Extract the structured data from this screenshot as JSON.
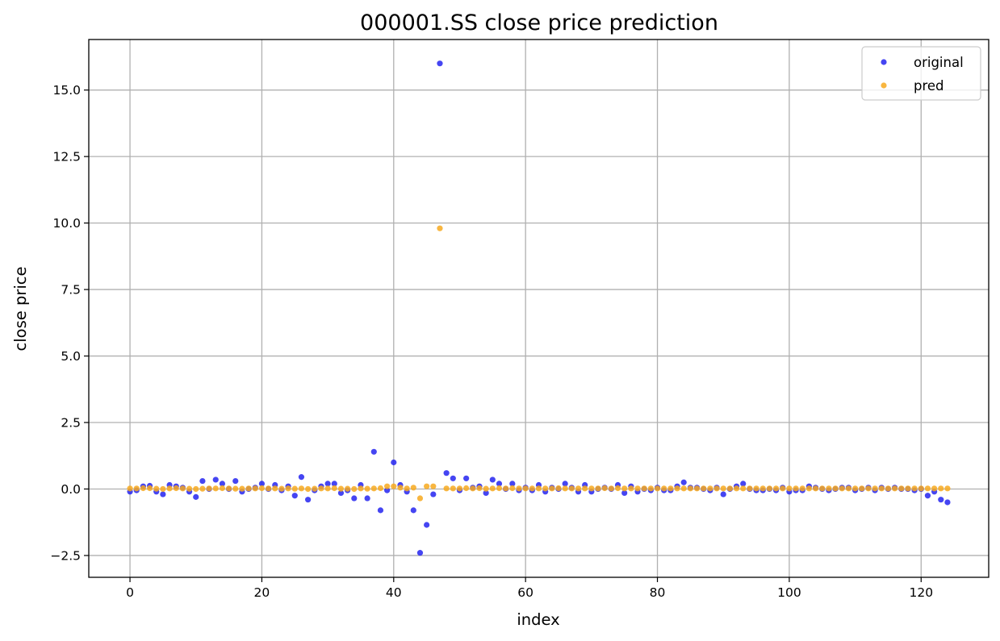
{
  "chart_data": {
    "type": "scatter",
    "title": "000001.SS close price prediction",
    "xlabel": "index",
    "ylabel": "close price",
    "xlim": [
      -6.25,
      130.25
    ],
    "ylim": [
      -3.32,
      16.9
    ],
    "xticks": [
      0,
      20,
      40,
      60,
      80,
      100,
      120
    ],
    "xtick_labels": [
      "0",
      "20",
      "40",
      "60",
      "80",
      "100",
      "120"
    ],
    "yticks": [
      -2.5,
      0.0,
      2.5,
      5.0,
      7.5,
      10.0,
      12.5,
      15.0
    ],
    "ytick_labels": [
      "−2.5",
      "0.0",
      "2.5",
      "5.0",
      "7.5",
      "10.0",
      "12.5",
      "15.0"
    ],
    "grid": true,
    "legend_position": "top-right",
    "series": [
      {
        "name": "original",
        "color": "#2424f0",
        "x": [
          0,
          1,
          2,
          3,
          4,
          5,
          6,
          7,
          8,
          9,
          10,
          11,
          12,
          13,
          14,
          15,
          16,
          17,
          18,
          19,
          20,
          21,
          22,
          23,
          24,
          25,
          26,
          27,
          28,
          29,
          30,
          31,
          32,
          33,
          34,
          35,
          36,
          37,
          38,
          39,
          40,
          41,
          42,
          43,
          44,
          45,
          46,
          47,
          48,
          49,
          50,
          51,
          52,
          53,
          54,
          55,
          56,
          57,
          58,
          59,
          60,
          61,
          62,
          63,
          64,
          65,
          66,
          67,
          68,
          69,
          70,
          71,
          72,
          73,
          74,
          75,
          76,
          77,
          78,
          79,
          80,
          81,
          82,
          83,
          84,
          85,
          86,
          87,
          88,
          89,
          90,
          91,
          92,
          93,
          94,
          95,
          96,
          97,
          98,
          99,
          100,
          101,
          102,
          103,
          104,
          105,
          106,
          107,
          108,
          109,
          110,
          111,
          112,
          113,
          114,
          115,
          116,
          117,
          118,
          119,
          120,
          121,
          122,
          123,
          124
        ],
        "y": [
          -0.1,
          -0.05,
          0.1,
          0.12,
          -0.1,
          -0.2,
          0.15,
          0.1,
          0.05,
          -0.1,
          -0.3,
          0.3,
          0.0,
          0.35,
          0.2,
          0.0,
          0.3,
          -0.1,
          0.0,
          0.05,
          0.2,
          0.0,
          0.15,
          -0.05,
          0.1,
          -0.25,
          0.45,
          -0.4,
          -0.05,
          0.1,
          0.2,
          0.2,
          -0.15,
          -0.05,
          -0.35,
          0.15,
          -0.35,
          1.4,
          -0.8,
          -0.05,
          1.0,
          0.15,
          -0.1,
          -0.8,
          -2.4,
          -1.35,
          -0.2,
          16.0,
          0.6,
          0.4,
          -0.05,
          0.4,
          0.05,
          0.1,
          -0.15,
          0.35,
          0.2,
          0.0,
          0.2,
          -0.05,
          0.05,
          -0.05,
          0.15,
          -0.1,
          0.05,
          0.0,
          0.2,
          0.05,
          -0.1,
          0.15,
          -0.1,
          0.0,
          0.05,
          0.0,
          0.15,
          -0.15,
          0.1,
          -0.1,
          0.0,
          -0.05,
          0.05,
          -0.05,
          -0.05,
          0.1,
          0.25,
          0.05,
          0.05,
          0.0,
          -0.05,
          0.05,
          -0.2,
          0.0,
          0.1,
          0.2,
          0.0,
          -0.05,
          -0.05,
          0.0,
          -0.05,
          0.05,
          -0.1,
          -0.05,
          -0.05,
          0.1,
          0.05,
          0.0,
          -0.05,
          0.0,
          0.05,
          0.05,
          -0.05,
          0.0,
          0.05,
          -0.05,
          0.05,
          0.0,
          0.05,
          0.0,
          0.0,
          -0.05,
          0.0,
          -0.25,
          -0.1,
          -0.4,
          -0.5
        ]
      },
      {
        "name": "pred",
        "color": "#f7a91e",
        "x": [
          0,
          1,
          2,
          3,
          4,
          5,
          6,
          7,
          8,
          9,
          10,
          11,
          12,
          13,
          14,
          15,
          16,
          17,
          18,
          19,
          20,
          21,
          22,
          23,
          24,
          25,
          26,
          27,
          28,
          29,
          30,
          31,
          32,
          33,
          34,
          35,
          36,
          37,
          38,
          39,
          40,
          41,
          42,
          43,
          44,
          45,
          46,
          47,
          48,
          49,
          50,
          51,
          52,
          53,
          54,
          55,
          56,
          57,
          58,
          59,
          60,
          61,
          62,
          63,
          64,
          65,
          66,
          67,
          68,
          69,
          70,
          71,
          72,
          73,
          74,
          75,
          76,
          77,
          78,
          79,
          80,
          81,
          82,
          83,
          84,
          85,
          86,
          87,
          88,
          89,
          90,
          91,
          92,
          93,
          94,
          95,
          96,
          97,
          98,
          99,
          100,
          101,
          102,
          103,
          104,
          105,
          106,
          107,
          108,
          109,
          110,
          111,
          112,
          113,
          114,
          115,
          116,
          117,
          118,
          119,
          120,
          121,
          122,
          123,
          124
        ],
        "y": [
          0.02,
          0.02,
          0.03,
          0.03,
          0.01,
          0.0,
          0.02,
          0.03,
          0.02,
          0.01,
          0.0,
          0.01,
          0.02,
          0.02,
          0.03,
          0.02,
          0.01,
          0.01,
          0.02,
          0.02,
          0.03,
          0.02,
          0.02,
          0.01,
          0.02,
          0.01,
          0.02,
          0.0,
          0.01,
          0.02,
          0.02,
          0.03,
          0.01,
          0.01,
          0.0,
          0.02,
          0.01,
          0.02,
          0.03,
          0.1,
          0.1,
          0.05,
          0.02,
          0.05,
          -0.35,
          0.1,
          0.1,
          9.8,
          0.02,
          0.02,
          0.02,
          0.03,
          0.02,
          0.03,
          0.01,
          0.02,
          0.03,
          0.02,
          0.03,
          0.02,
          0.02,
          0.02,
          0.02,
          0.02,
          0.02,
          0.03,
          0.02,
          0.02,
          0.02,
          0.02,
          0.02,
          0.02,
          0.03,
          0.02,
          0.03,
          0.02,
          0.02,
          0.02,
          0.02,
          0.02,
          0.02,
          0.02,
          0.02,
          0.02,
          0.02,
          0.02,
          0.02,
          0.02,
          0.02,
          0.02,
          0.02,
          0.02,
          0.02,
          0.02,
          0.02,
          0.02,
          0.02,
          0.02,
          0.02,
          0.02,
          0.02,
          0.02,
          0.02,
          0.02,
          0.02,
          0.02,
          0.02,
          0.02,
          0.02,
          0.02,
          0.02,
          0.02,
          0.02,
          0.02,
          0.02,
          0.02,
          0.02,
          0.02,
          0.02,
          0.02,
          0.02,
          0.02,
          0.02,
          0.02,
          0.02
        ]
      }
    ]
  }
}
